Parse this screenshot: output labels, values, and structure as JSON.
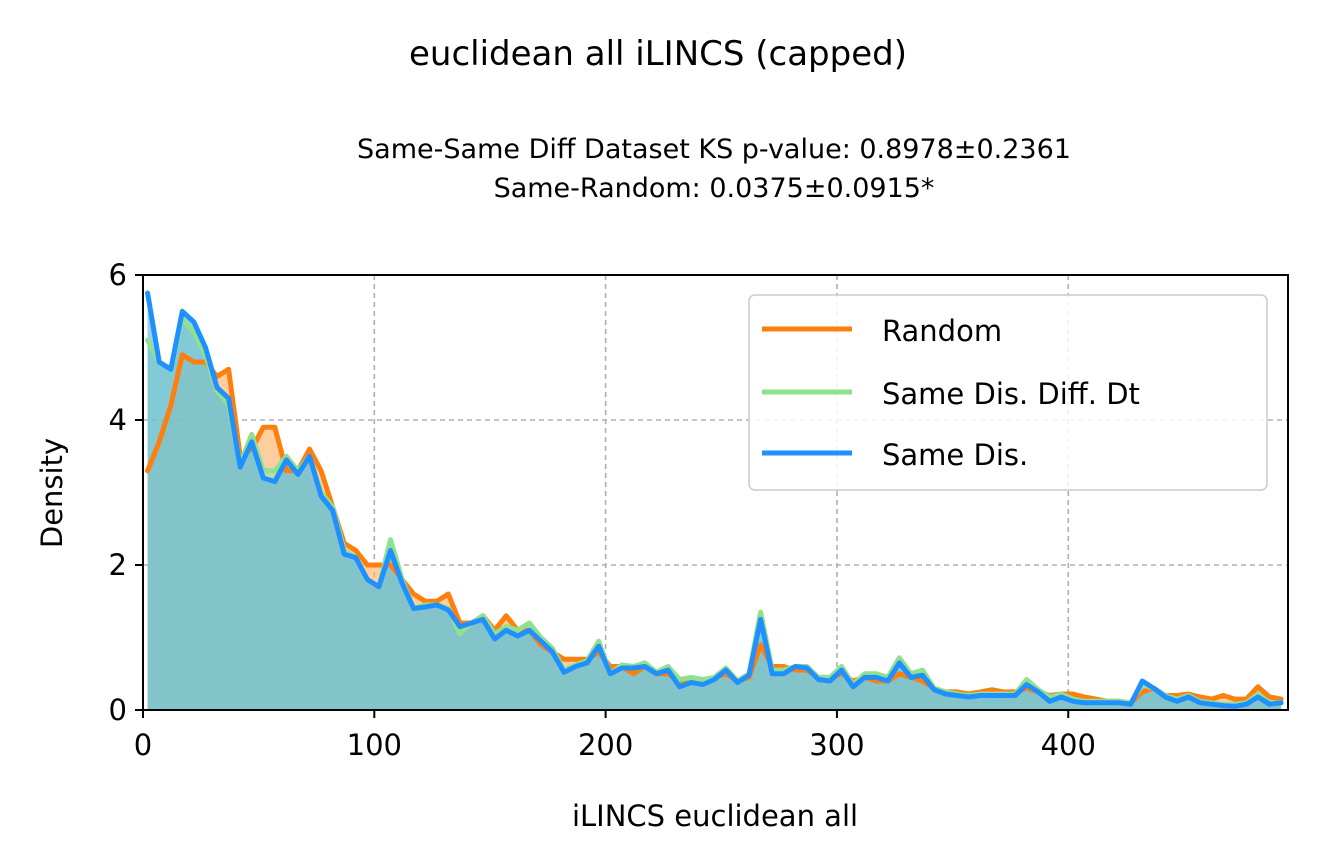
{
  "chart_data": {
    "type": "area",
    "title": "euclidean all iLINCS (capped)",
    "subtitle_lines": [
      "Same-Same Diff Dataset  KS p-value: 0.8978±0.2361",
      "Same-Random: 0.0375±0.0915*"
    ],
    "xlabel": "iLINCS euclidean all",
    "ylabel": "Density",
    "xlim": [
      0,
      495
    ],
    "ylim": [
      0,
      6
    ],
    "xticks": [
      0,
      100,
      200,
      300,
      400
    ],
    "yticks": [
      0,
      2,
      4,
      6
    ],
    "grid": true,
    "legend_position": "top-right",
    "y_scale": "x1e-3 (tick labels shown as printed)",
    "x": [
      2,
      7,
      12,
      17,
      22,
      27,
      32,
      37,
      42,
      47,
      52,
      57,
      62,
      67,
      72,
      77,
      82,
      87,
      92,
      97,
      102,
      107,
      112,
      117,
      122,
      127,
      132,
      137,
      142,
      147,
      152,
      157,
      162,
      167,
      172,
      177,
      182,
      187,
      192,
      197,
      202,
      207,
      212,
      217,
      222,
      227,
      232,
      237,
      242,
      247,
      252,
      257,
      262,
      267,
      272,
      277,
      282,
      287,
      292,
      297,
      302,
      307,
      312,
      317,
      322,
      327,
      332,
      337,
      342,
      347,
      352,
      357,
      362,
      367,
      372,
      377,
      382,
      387,
      392,
      397,
      402,
      407,
      412,
      417,
      422,
      427,
      432,
      437,
      442,
      447,
      452,
      457,
      462,
      467,
      472,
      477,
      482,
      487,
      492
    ],
    "series": [
      {
        "name": "Random",
        "color": "#ff7f0e",
        "fill": "#ffb36b",
        "values": [
          3.3,
          3.7,
          4.2,
          4.9,
          4.8,
          4.8,
          4.6,
          4.7,
          3.5,
          3.6,
          3.9,
          3.9,
          3.3,
          3.3,
          3.6,
          3.3,
          2.8,
          2.3,
          2.2,
          2.0,
          2.0,
          2.0,
          1.8,
          1.6,
          1.5,
          1.5,
          1.6,
          1.2,
          1.2,
          1.3,
          1.1,
          1.3,
          1.1,
          1.1,
          0.9,
          0.8,
          0.7,
          0.7,
          0.7,
          0.8,
          0.6,
          0.6,
          0.5,
          0.6,
          0.5,
          0.5,
          0.4,
          0.4,
          0.4,
          0.45,
          0.5,
          0.4,
          0.45,
          0.9,
          0.6,
          0.6,
          0.55,
          0.55,
          0.45,
          0.45,
          0.5,
          0.4,
          0.45,
          0.4,
          0.4,
          0.5,
          0.45,
          0.4,
          0.3,
          0.25,
          0.25,
          0.22,
          0.25,
          0.28,
          0.25,
          0.25,
          0.3,
          0.25,
          0.2,
          0.22,
          0.22,
          0.18,
          0.15,
          0.12,
          0.12,
          0.1,
          0.25,
          0.3,
          0.2,
          0.2,
          0.22,
          0.18,
          0.15,
          0.2,
          0.15,
          0.15,
          0.32,
          0.18,
          0.15
        ]
      },
      {
        "name": "Same Dis. Diff. Dt",
        "color": "#90e090",
        "fill": "#a8dfa8",
        "values": [
          5.1,
          4.8,
          4.7,
          5.4,
          5.2,
          4.9,
          4.4,
          4.2,
          3.4,
          3.8,
          3.3,
          3.3,
          3.5,
          3.3,
          3.5,
          3.0,
          2.8,
          2.2,
          2.1,
          1.8,
          1.7,
          2.35,
          1.8,
          1.4,
          1.45,
          1.45,
          1.4,
          1.05,
          1.2,
          1.3,
          1.05,
          1.15,
          1.1,
          1.2,
          1.0,
          0.85,
          0.55,
          0.62,
          0.68,
          0.95,
          0.5,
          0.62,
          0.6,
          0.65,
          0.52,
          0.6,
          0.42,
          0.45,
          0.42,
          0.45,
          0.58,
          0.4,
          0.5,
          1.35,
          0.55,
          0.55,
          0.6,
          0.6,
          0.45,
          0.45,
          0.6,
          0.35,
          0.5,
          0.5,
          0.45,
          0.72,
          0.5,
          0.55,
          0.3,
          0.25,
          0.22,
          0.2,
          0.22,
          0.22,
          0.22,
          0.22,
          0.42,
          0.28,
          0.18,
          0.22,
          0.15,
          0.12,
          0.12,
          0.12,
          0.12,
          0.1,
          0.35,
          0.3,
          0.2,
          0.15,
          0.2,
          0.12,
          0.1,
          0.08,
          0.08,
          0.1,
          0.22,
          0.1,
          0.1
        ]
      },
      {
        "name": "Same Dis.",
        "color": "#1e90ff",
        "fill": "#60b8e0",
        "values": [
          5.75,
          4.8,
          4.7,
          5.5,
          5.35,
          5.0,
          4.45,
          4.3,
          3.35,
          3.7,
          3.2,
          3.15,
          3.45,
          3.25,
          3.5,
          2.95,
          2.75,
          2.15,
          2.1,
          1.8,
          1.7,
          2.2,
          1.75,
          1.4,
          1.42,
          1.45,
          1.38,
          1.15,
          1.2,
          1.25,
          0.98,
          1.1,
          1.02,
          1.1,
          0.95,
          0.8,
          0.52,
          0.6,
          0.65,
          0.88,
          0.5,
          0.58,
          0.58,
          0.6,
          0.5,
          0.55,
          0.32,
          0.38,
          0.35,
          0.42,
          0.55,
          0.38,
          0.48,
          1.25,
          0.5,
          0.5,
          0.6,
          0.58,
          0.42,
          0.4,
          0.55,
          0.32,
          0.45,
          0.45,
          0.4,
          0.65,
          0.45,
          0.48,
          0.28,
          0.22,
          0.2,
          0.18,
          0.2,
          0.2,
          0.2,
          0.2,
          0.35,
          0.25,
          0.12,
          0.18,
          0.12,
          0.1,
          0.1,
          0.1,
          0.1,
          0.08,
          0.4,
          0.3,
          0.18,
          0.12,
          0.18,
          0.1,
          0.08,
          0.06,
          0.05,
          0.08,
          0.18,
          0.08,
          0.1
        ]
      }
    ]
  }
}
